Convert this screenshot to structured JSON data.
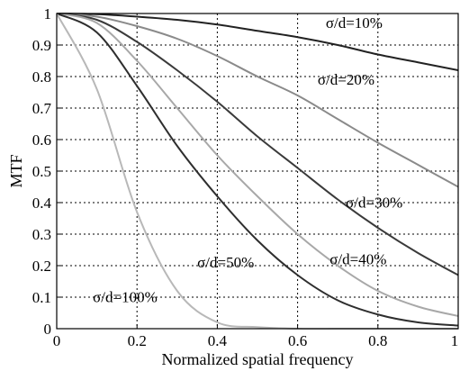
{
  "chart_data": {
    "type": "line",
    "title": "",
    "xlabel": "Normalized spatial frequency",
    "ylabel": "MTF",
    "xlim": [
      0,
      1
    ],
    "ylim": [
      0,
      1
    ],
    "x_ticks": [
      "0",
      "0.2",
      "0.4",
      "0.6",
      "0.8",
      "1"
    ],
    "y_ticks": [
      "0",
      "0.1",
      "0.2",
      "0.3",
      "0.4",
      "0.5",
      "0.6",
      "0.7",
      "0.8",
      "0.9",
      "1"
    ],
    "grid": true,
    "x": [
      0,
      0.1,
      0.2,
      0.3,
      0.4,
      0.5,
      0.6,
      0.7,
      0.8,
      0.9,
      1.0
    ],
    "series": [
      {
        "name": "σ/d=10%",
        "color": "#222222",
        "values": [
          1.0,
          0.998,
          0.99,
          0.98,
          0.965,
          0.945,
          0.925,
          0.9,
          0.87,
          0.845,
          0.82
        ]
      },
      {
        "name": "σ/d=20%",
        "color": "#8a8a8a",
        "values": [
          1.0,
          0.99,
          0.96,
          0.92,
          0.865,
          0.8,
          0.74,
          0.665,
          0.59,
          0.52,
          0.45
        ]
      },
      {
        "name": "σ/d=30%",
        "color": "#3a3a3a",
        "values": [
          1.0,
          0.98,
          0.91,
          0.82,
          0.72,
          0.61,
          0.51,
          0.41,
          0.32,
          0.24,
          0.17
        ]
      },
      {
        "name": "σ/d=40%",
        "color": "#a8a8a8",
        "values": [
          1.0,
          0.97,
          0.85,
          0.7,
          0.55,
          0.42,
          0.3,
          0.2,
          0.12,
          0.07,
          0.04
        ]
      },
      {
        "name": "σ/d=50%",
        "color": "#2e2e2e",
        "values": [
          1.0,
          0.94,
          0.77,
          0.58,
          0.42,
          0.28,
          0.17,
          0.09,
          0.045,
          0.02,
          0.01
        ]
      },
      {
        "name": "σ/d=100%",
        "color": "#b8b8b8",
        "values": [
          1.0,
          0.76,
          0.37,
          0.12,
          0.02,
          0.005,
          0.0,
          0.0,
          0.0,
          0.0,
          0.0
        ]
      }
    ],
    "labels": [
      {
        "text": "σ/d=10%",
        "at": [
          0.67,
          0.955
        ]
      },
      {
        "text": "σ/d=20%",
        "at": [
          0.65,
          0.775
        ]
      },
      {
        "text": "σ/d=30%",
        "at": [
          0.72,
          0.385
        ]
      },
      {
        "text": "σ/d=40%",
        "at": [
          0.68,
          0.205
        ]
      },
      {
        "text": "σ/d=50%",
        "at": [
          0.35,
          0.195
        ]
      },
      {
        "text": "σ/d=100%",
        "at": [
          0.09,
          0.085
        ]
      }
    ]
  }
}
